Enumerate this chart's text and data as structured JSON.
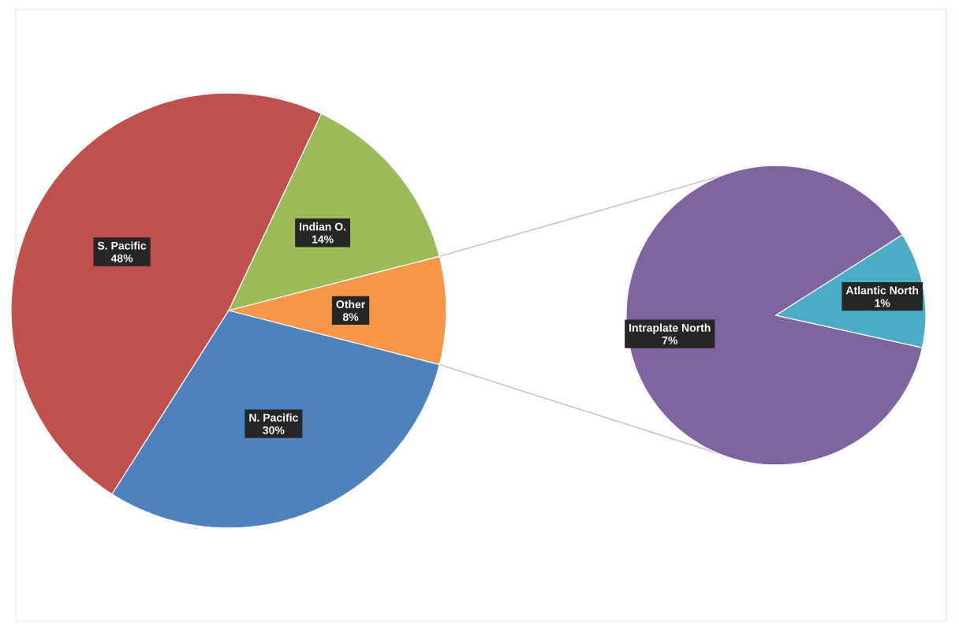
{
  "chart_data": [
    {
      "type": "pie",
      "categories": [
        "S. Pacific",
        "Indian O.",
        "Other",
        "N. Pacific"
      ],
      "values": [
        48,
        14,
        8,
        30
      ],
      "value_labels": [
        "48%",
        "14%",
        "8%",
        "30%"
      ],
      "colors": [
        "#c0504d",
        "#9bbb59",
        "#f79646",
        "#4f81bd"
      ]
    },
    {
      "type": "pie",
      "categories": [
        "Intraplate North",
        "Atlantic North"
      ],
      "values": [
        7,
        1
      ],
      "value_labels": [
        "7%",
        "1%"
      ],
      "colors": [
        "#8064a2",
        "#4bacc6"
      ]
    }
  ]
}
